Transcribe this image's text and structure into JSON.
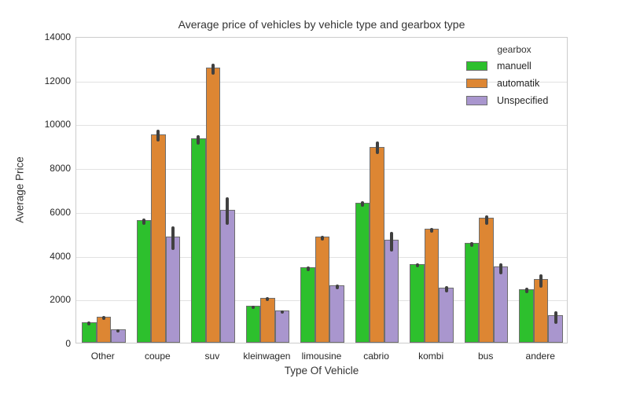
{
  "chart_data": {
    "type": "bar",
    "title": "Average price of vehicles by vehicle type and gearbox type",
    "xlabel": "Type Of Vehicle",
    "ylabel": "Average Price",
    "ylim": [
      0,
      14000
    ],
    "yticks": [
      0,
      2000,
      4000,
      6000,
      8000,
      10000,
      12000,
      14000
    ],
    "grid": true,
    "legend_title": "gearbox",
    "legend_position": "upper right",
    "categories": [
      "Other",
      "coupe",
      "suv",
      "kleinwagen",
      "limousine",
      "cabrio",
      "kombi",
      "bus",
      "andere"
    ],
    "series": [
      {
        "name": "manuell",
        "color": "#2dc02d",
        "values": [
          950,
          5600,
          9350,
          1700,
          3450,
          6400,
          3600,
          4550,
          2450
        ],
        "ci_low": [
          870,
          5450,
          9100,
          1640,
          3350,
          6280,
          3500,
          4450,
          2330
        ],
        "ci_high": [
          1030,
          5750,
          9550,
          1760,
          3550,
          6550,
          3700,
          4650,
          2580
        ]
      },
      {
        "name": "automatik",
        "color": "#dd8633",
        "values": [
          1200,
          9500,
          12550,
          2050,
          4850,
          8950,
          5200,
          5700,
          2900
        ],
        "ci_low": [
          1110,
          9250,
          12300,
          1960,
          4750,
          8700,
          5100,
          5450,
          2600
        ],
        "ci_high": [
          1290,
          9800,
          12800,
          2160,
          4950,
          9250,
          5300,
          5900,
          3200
        ]
      },
      {
        "name": "Unspecified",
        "color": "#a996ce",
        "values": [
          620,
          4850,
          6050,
          1470,
          2620,
          4700,
          2500,
          3500,
          1270
        ],
        "ci_low": [
          550,
          4300,
          5450,
          1400,
          2520,
          4250,
          2380,
          3200,
          950
        ],
        "ci_high": [
          690,
          5400,
          6700,
          1550,
          2720,
          5150,
          2650,
          3700,
          1500
        ]
      }
    ],
    "error_bar_color": "#404040",
    "gridline_color": "#e2e2e2"
  }
}
